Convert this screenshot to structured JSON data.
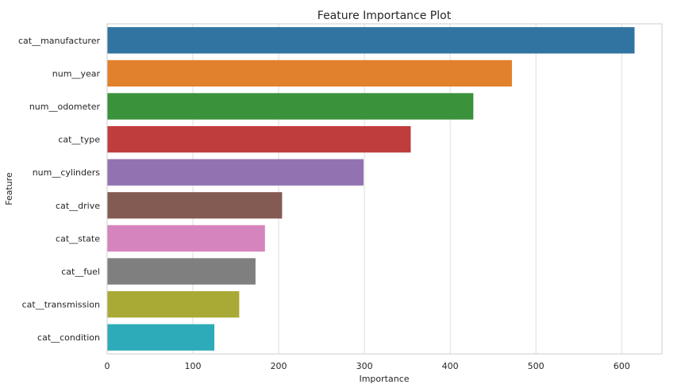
{
  "chart_data": {
    "type": "bar",
    "orientation": "horizontal",
    "title": "Feature Importance Plot",
    "xlabel": "Importance",
    "ylabel": "Feature",
    "categories": [
      "cat__manufacturer",
      "num__year",
      "num__odometer",
      "cat__type",
      "num__cylinders",
      "cat__drive",
      "cat__state",
      "cat__fuel",
      "cat__transmission",
      "cat__condition"
    ],
    "values": [
      615,
      472,
      427,
      354,
      299,
      204,
      184,
      173,
      154,
      125
    ],
    "colors": [
      "#3274a1",
      "#e1812c",
      "#3a923a",
      "#c03d3e",
      "#9372b2",
      "#845b53",
      "#d684bd",
      "#7f7f7f",
      "#a9aa35",
      "#2eabb8"
    ],
    "xlim": [
      0,
      647
    ],
    "xticks": [
      0,
      100,
      200,
      300,
      400,
      500,
      600
    ],
    "grid": true
  }
}
